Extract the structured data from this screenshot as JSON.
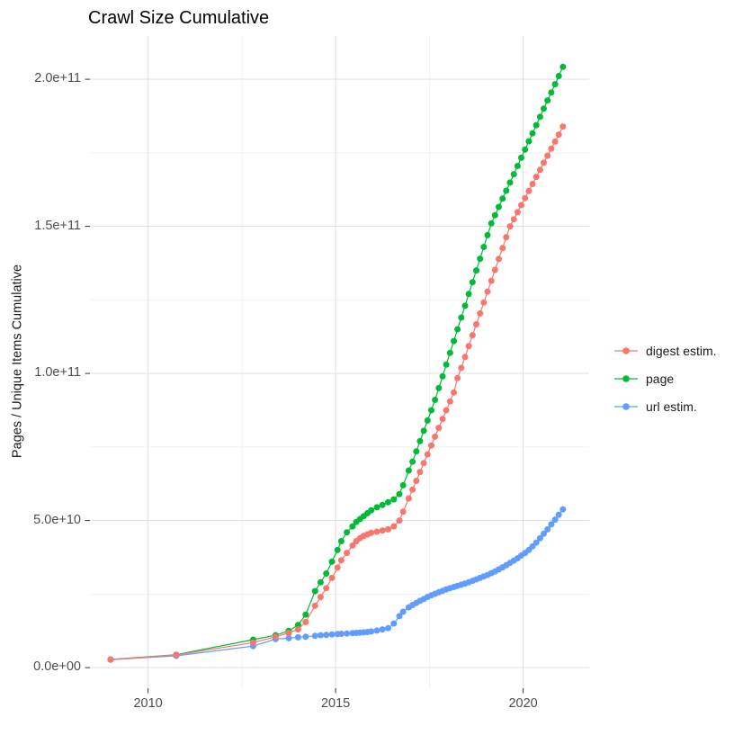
{
  "title": "Crawl Size Cumulative",
  "chart_data": {
    "type": "line",
    "title": "Crawl Size Cumulative",
    "xlabel": "",
    "ylabel": "Pages / Unique Items Cumulative",
    "values_unit": "1e9 (billions of pages / unique items, cumulative)",
    "x_unit": "decimal year",
    "grid": true,
    "legend_position": "right",
    "xlim": [
      2008.45,
      2021.76
    ],
    "ylim": [
      -7,
      214.7
    ],
    "x_ticks": [
      {
        "label": "2010",
        "value": 2010
      },
      {
        "label": "2015",
        "value": 2015
      },
      {
        "label": "2020",
        "value": 2020
      }
    ],
    "x_minor": [
      2012.5,
      2017.5
    ],
    "y_ticks": [
      {
        "label": "0.0e+00",
        "value": 0
      },
      {
        "label": "5.0e+10",
        "value": 50
      },
      {
        "label": "1.0e+11",
        "value": 100
      },
      {
        "label": "1.5e+11",
        "value": 150
      },
      {
        "label": "2.0e+11",
        "value": 200
      }
    ],
    "y_minor": [
      25,
      75,
      125,
      175
    ],
    "x": [
      2009.0,
      2010.75,
      2012.8,
      2013.4,
      2013.75,
      2014.0,
      2014.2,
      2014.45,
      2014.6,
      2014.75,
      2014.9,
      2015.05,
      2015.15,
      2015.3,
      2015.45,
      2015.55,
      2015.65,
      2015.75,
      2015.85,
      2015.95,
      2016.1,
      2016.25,
      2016.4,
      2016.55,
      2016.7,
      2016.8,
      2016.95,
      2017.05,
      2017.15,
      2017.25,
      2017.35,
      2017.45,
      2017.55,
      2017.65,
      2017.75,
      2017.85,
      2017.95,
      2018.05,
      2018.15,
      2018.25,
      2018.35,
      2018.45,
      2018.55,
      2018.65,
      2018.75,
      2018.85,
      2018.95,
      2019.05,
      2019.15,
      2019.25,
      2019.35,
      2019.45,
      2019.55,
      2019.65,
      2019.75,
      2019.85,
      2019.95,
      2020.05,
      2020.15,
      2020.25,
      2020.35,
      2020.45,
      2020.55,
      2020.65,
      2020.75,
      2020.85,
      2020.95,
      2021.06
    ],
    "series": [
      {
        "name": "digest estim.",
        "color": "#F8766D",
        "values": [
          2.7,
          4.3,
          8.5,
          10.5,
          11.8,
          13,
          15.5,
          21,
          24,
          27,
          30.5,
          34,
          36.5,
          39,
          41.5,
          43,
          44,
          44.8,
          45.3,
          45.8,
          46.2,
          46.6,
          47,
          48,
          50,
          53,
          57.5,
          60.5,
          63.5,
          66.5,
          69.5,
          72.5,
          75.5,
          78.5,
          81.5,
          84.5,
          87.5,
          90.5,
          93.5,
          98.4,
          101.9,
          105.6,
          109.3,
          113,
          116.7,
          120.4,
          124.1,
          127.8,
          131.5,
          135.2,
          138.9,
          142.6,
          146.3,
          150,
          152.4,
          154.8,
          157.2,
          159.6,
          162,
          164.4,
          166.8,
          169.2,
          171.6,
          174,
          176.4,
          178.8,
          181.2,
          183.9
        ]
      },
      {
        "name": "page",
        "color": "#00BA38",
        "values": [
          2.8,
          4.4,
          9.5,
          11,
          12.5,
          14.5,
          18,
          26,
          29,
          32,
          36,
          40,
          43,
          46,
          48,
          49.5,
          50.5,
          51.5,
          52.5,
          53.5,
          54.5,
          55.3,
          56.2,
          57.2,
          59,
          62,
          67,
          70,
          73.5,
          77,
          80.5,
          84,
          87.5,
          91,
          95,
          99,
          103,
          107,
          111,
          115,
          119,
          123,
          127,
          131,
          135,
          139,
          143,
          147,
          151,
          153.8,
          156.6,
          159.4,
          162.1,
          164.9,
          167.7,
          170.5,
          173.3,
          176.1,
          178.9,
          181.6,
          184.4,
          187.2,
          190,
          192.8,
          195.5,
          198.3,
          201.1,
          204.2
        ]
      },
      {
        "name": "url estim.",
        "color": "#619CFF",
        "values": [
          2.7,
          4.0,
          7.3,
          9.7,
          10,
          10.3,
          10.5,
          10.8,
          11,
          11.1,
          11.3,
          11.4,
          11.5,
          11.6,
          11.7,
          11.8,
          11.9,
          12,
          12.1,
          12.3,
          12.6,
          13,
          13.4,
          15,
          17.5,
          19,
          20.5,
          21.3,
          22,
          22.7,
          23.3,
          24,
          24.6,
          25.1,
          25.6,
          26.1,
          26.6,
          27,
          27.4,
          27.8,
          28.2,
          28.6,
          29,
          29.5,
          30,
          30.5,
          31,
          31.5,
          32.1,
          32.7,
          33.4,
          34.1,
          34.8,
          35.6,
          36.4,
          37.2,
          38.1,
          39,
          40,
          41.2,
          42.5,
          44,
          45.5,
          47,
          48.7,
          50.3,
          52,
          53.8
        ]
      }
    ]
  }
}
